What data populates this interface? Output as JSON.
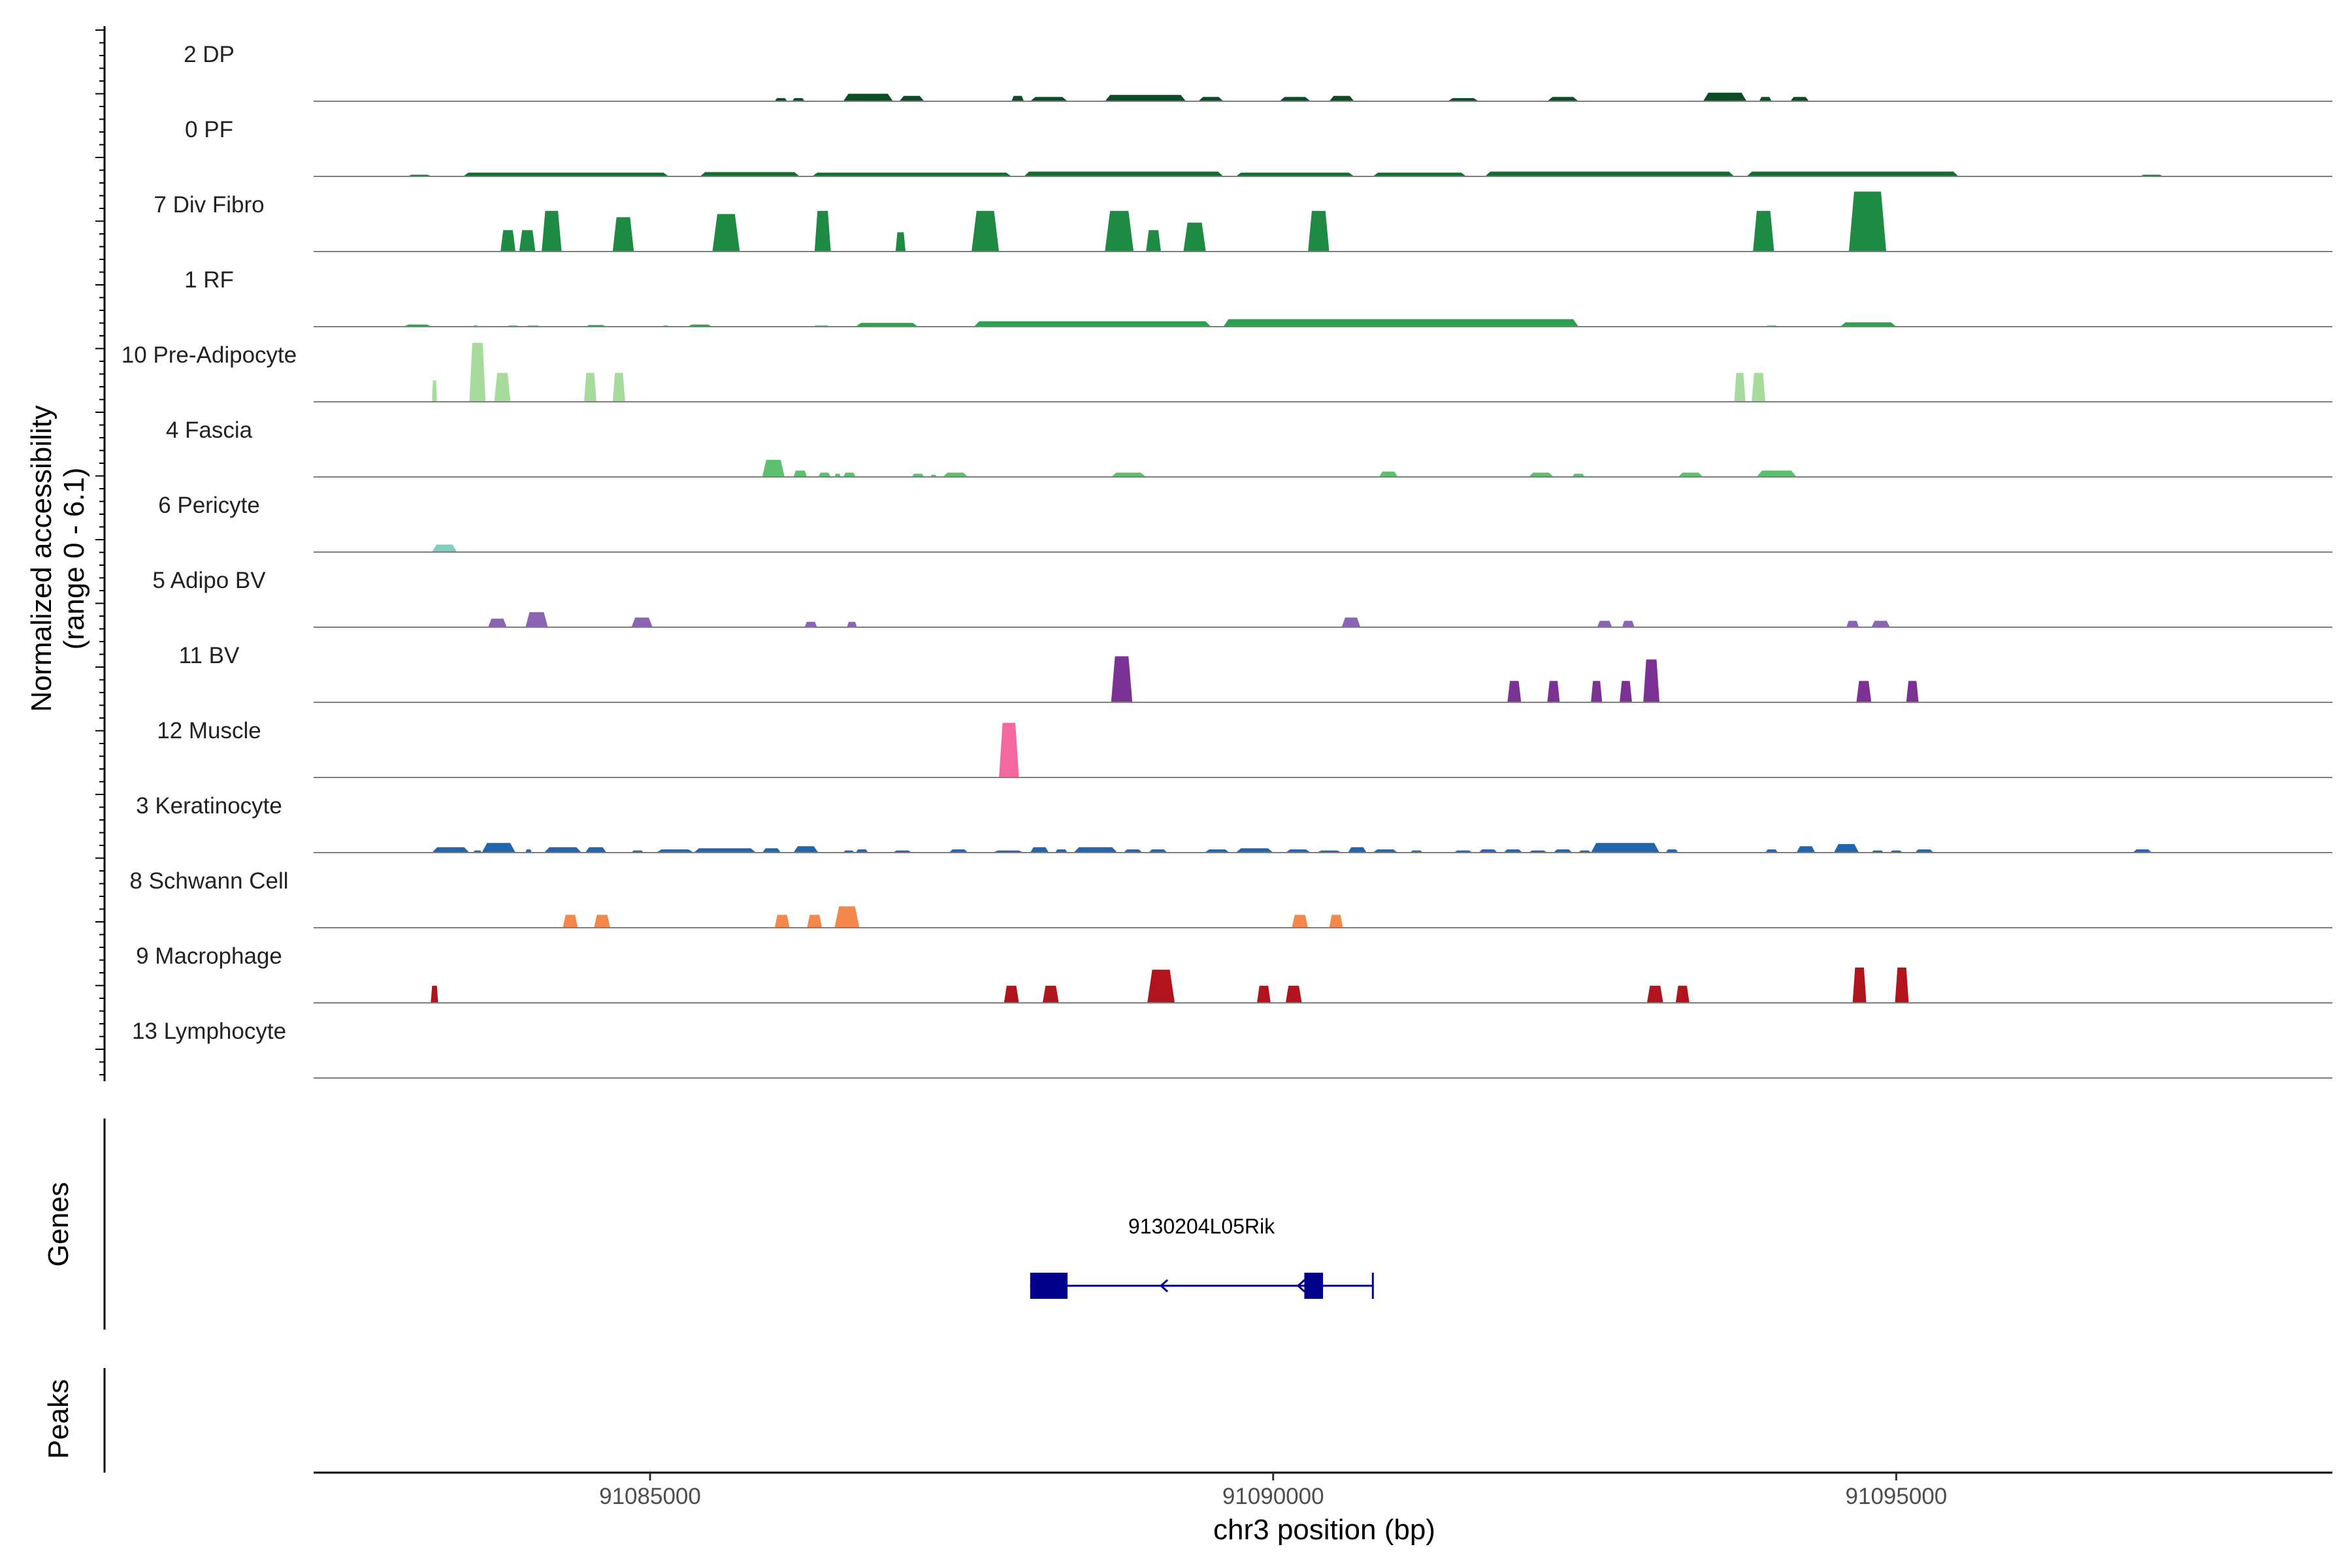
{
  "chart_data": {
    "type": "coverage-track",
    "xlabel": "chr3 position (bp)",
    "ylabel": "Normalized accessibility",
    "ylabel_range": "(range 0 - 6.1)",
    "xlim": [
      91082300,
      91098500
    ],
    "ylim": [
      0,
      6.1
    ],
    "x_ticks": [
      {
        "value": 91085000,
        "label": "91085000"
      },
      {
        "value": 91090000,
        "label": "91090000"
      },
      {
        "value": 91095000,
        "label": "91095000"
      }
    ],
    "tracks": [
      {
        "name": "2 DP",
        "color": "#0d4d25",
        "regions": [
          [
            91086000,
            91086100,
            0.3
          ],
          [
            91086140,
            91086240,
            0.3
          ],
          [
            91086550,
            91086950,
            0.7
          ],
          [
            91087000,
            91087200,
            0.5
          ],
          [
            91087900,
            91088000,
            0.5
          ],
          [
            91088050,
            91088350,
            0.4
          ],
          [
            91088650,
            91089300,
            0.6
          ],
          [
            91089400,
            91089600,
            0.4
          ],
          [
            91090050,
            91090300,
            0.4
          ],
          [
            91090450,
            91090650,
            0.5
          ],
          [
            91091400,
            91091650,
            0.3
          ],
          [
            91092200,
            91092450,
            0.4
          ],
          [
            91093450,
            91093800,
            0.8
          ],
          [
            91093900,
            91094000,
            0.4
          ],
          [
            91094150,
            91094300,
            0.4
          ]
        ]
      },
      {
        "name": "0 PF",
        "color": "#156b31",
        "regions": [
          [
            91083050,
            91083250,
            0.15
          ],
          [
            91083500,
            91085150,
            0.35
          ],
          [
            91085400,
            91086200,
            0.4
          ],
          [
            91086300,
            91087900,
            0.35
          ],
          [
            91088000,
            91089600,
            0.45
          ],
          [
            91089700,
            91090650,
            0.35
          ],
          [
            91090800,
            91091550,
            0.35
          ],
          [
            91091700,
            91093700,
            0.45
          ],
          [
            91093800,
            91095500,
            0.45
          ],
          [
            91096950,
            91097150,
            0.15
          ]
        ]
      },
      {
        "name": "7 Div Fibro",
        "color": "#1f8a44",
        "regions": [
          [
            91083800,
            91083920,
            2.0
          ],
          [
            91083950,
            91084080,
            2.0
          ],
          [
            91084130,
            91084290,
            3.8
          ],
          [
            91084700,
            91084870,
            3.2
          ],
          [
            91085500,
            91085720,
            3.5
          ],
          [
            91086320,
            91086450,
            3.8
          ],
          [
            91086970,
            91087050,
            1.8
          ],
          [
            91087580,
            91087800,
            3.8
          ],
          [
            91088650,
            91088880,
            3.8
          ],
          [
            91088980,
            91089100,
            2.0
          ],
          [
            91089280,
            91089460,
            2.7
          ],
          [
            91090280,
            91090450,
            3.8
          ],
          [
            91093850,
            91094020,
            3.8
          ],
          [
            91094620,
            91094920,
            5.6
          ]
        ]
      },
      {
        "name": "1 RF",
        "color": "#2e9e4f",
        "regions": [
          [
            91083020,
            91083250,
            0.2
          ],
          [
            91083580,
            91083620,
            0.1
          ],
          [
            91083850,
            91083950,
            0.1
          ],
          [
            91084000,
            91084120,
            0.1
          ],
          [
            91084480,
            91084650,
            0.15
          ],
          [
            91085100,
            91085150,
            0.1
          ],
          [
            91085300,
            91085500,
            0.2
          ],
          [
            91086300,
            91086450,
            0.1
          ],
          [
            91086650,
            91087150,
            0.35
          ],
          [
            91087600,
            91089500,
            0.5
          ],
          [
            91089600,
            91092450,
            0.7
          ],
          [
            91093950,
            91094050,
            0.1
          ],
          [
            91094550,
            91095000,
            0.4
          ]
        ]
      },
      {
        "name": "10 Pre-Adipocyte",
        "color": "#a6db9d",
        "regions": [
          [
            91083250,
            91083290,
            2.0
          ],
          [
            91083550,
            91083680,
            5.5
          ],
          [
            91083750,
            91083880,
            2.7
          ],
          [
            91084470,
            91084570,
            2.7
          ],
          [
            91084700,
            91084800,
            2.7
          ],
          [
            91093700,
            91093790,
            2.7
          ],
          [
            91093840,
            91093950,
            2.7
          ]
        ]
      },
      {
        "name": "4 Fascia",
        "color": "#5cc06f",
        "regions": [
          [
            91085900,
            91086080,
            1.6
          ],
          [
            91086150,
            91086260,
            0.6
          ],
          [
            91086350,
            91086450,
            0.4
          ],
          [
            91086480,
            91086530,
            0.3
          ],
          [
            91086550,
            91086650,
            0.4
          ],
          [
            91087100,
            91087200,
            0.3
          ],
          [
            91087250,
            91087300,
            0.2
          ],
          [
            91087350,
            91087550,
            0.4
          ],
          [
            91088700,
            91088980,
            0.4
          ],
          [
            91090850,
            91091000,
            0.5
          ],
          [
            91092050,
            91092250,
            0.4
          ],
          [
            91092400,
            91092500,
            0.3
          ],
          [
            91093250,
            91093450,
            0.4
          ],
          [
            91093880,
            91094200,
            0.6
          ]
        ]
      },
      {
        "name": "6 Pericyte",
        "color": "#7fcdbb",
        "regions": [
          [
            91083250,
            91083450,
            0.7
          ]
        ]
      },
      {
        "name": "5 Adipo BV",
        "color": "#8b64b3",
        "regions": [
          [
            91083700,
            91083850,
            0.8
          ],
          [
            91084000,
            91084180,
            1.4
          ],
          [
            91084850,
            91085020,
            0.9
          ],
          [
            91086240,
            91086340,
            0.5
          ],
          [
            91086580,
            91086660,
            0.5
          ],
          [
            91090550,
            91090700,
            0.9
          ],
          [
            91092600,
            91092720,
            0.6
          ],
          [
            91092800,
            91092900,
            0.6
          ],
          [
            91094600,
            91094700,
            0.6
          ],
          [
            91094800,
            91094950,
            0.6
          ]
        ]
      },
      {
        "name": "11 BV",
        "color": "#7b3294",
        "regions": [
          [
            91088700,
            91088870,
            4.3
          ],
          [
            91091880,
            91091990,
            2.0
          ],
          [
            91092200,
            91092300,
            2.0
          ],
          [
            91092550,
            91092640,
            2.0
          ],
          [
            91092780,
            91092880,
            2.0
          ],
          [
            91092970,
            91093100,
            4.0
          ],
          [
            91094680,
            91094800,
            2.0
          ],
          [
            91095080,
            91095180,
            2.0
          ]
        ]
      },
      {
        "name": "12 Muscle",
        "color": "#f468a0",
        "regions": [
          [
            91087800,
            91087960,
            5.1
          ]
        ]
      },
      {
        "name": "3 Keratinocyte",
        "color": "#2166ac",
        "regions": [
          [
            91083250,
            91083550,
            0.5
          ],
          [
            91083580,
            91083650,
            0.2
          ],
          [
            91083650,
            91083920,
            0.9
          ],
          [
            91084000,
            91084050,
            0.3
          ],
          [
            91084150,
            91084450,
            0.5
          ],
          [
            91084480,
            91084650,
            0.5
          ],
          [
            91084850,
            91084950,
            0.2
          ],
          [
            91085050,
            91085350,
            0.3
          ],
          [
            91085350,
            91085850,
            0.4
          ],
          [
            91085900,
            91086050,
            0.4
          ],
          [
            91086150,
            91086350,
            0.6
          ],
          [
            91086550,
            91086640,
            0.2
          ],
          [
            91086650,
            91086750,
            0.3
          ],
          [
            91086950,
            91087100,
            0.2
          ],
          [
            91087400,
            91087550,
            0.3
          ],
          [
            91087750,
            91088000,
            0.2
          ],
          [
            91088050,
            91088200,
            0.5
          ],
          [
            91088250,
            91088350,
            0.3
          ],
          [
            91088400,
            91088750,
            0.5
          ],
          [
            91088800,
            91088950,
            0.3
          ],
          [
            91089000,
            91089150,
            0.3
          ],
          [
            91089450,
            91089650,
            0.3
          ],
          [
            91089700,
            91090000,
            0.4
          ],
          [
            91090100,
            91090300,
            0.3
          ],
          [
            91090350,
            91090550,
            0.2
          ],
          [
            91090600,
            91090750,
            0.5
          ],
          [
            91090800,
            91091000,
            0.3
          ],
          [
            91091100,
            91091200,
            0.2
          ],
          [
            91091450,
            91091600,
            0.2
          ],
          [
            91091650,
            91091800,
            0.3
          ],
          [
            91091850,
            91092000,
            0.3
          ],
          [
            91092050,
            91092200,
            0.2
          ],
          [
            91092250,
            91092400,
            0.3
          ],
          [
            91092450,
            91092550,
            0.2
          ],
          [
            91092550,
            91093100,
            0.9
          ],
          [
            91093150,
            91093250,
            0.3
          ],
          [
            91093950,
            91094050,
            0.3
          ],
          [
            91094200,
            91094350,
            0.6
          ],
          [
            91094500,
            91094700,
            0.8
          ],
          [
            91094800,
            91094900,
            0.2
          ],
          [
            91094950,
            91095050,
            0.2
          ],
          [
            91095150,
            91095300,
            0.3
          ],
          [
            91096900,
            91097050,
            0.3
          ]
        ]
      },
      {
        "name": "8 Schwann Cell",
        "color": "#f4874b",
        "regions": [
          [
            91084300,
            91084420,
            1.2
          ],
          [
            91084550,
            91084680,
            1.2
          ],
          [
            91086000,
            91086120,
            1.2
          ],
          [
            91086260,
            91086380,
            1.2
          ],
          [
            91086480,
            91086680,
            2.0
          ],
          [
            91090150,
            91090280,
            1.2
          ],
          [
            91090450,
            91090560,
            1.2
          ]
        ]
      },
      {
        "name": "9 Macrophage",
        "color": "#b2141d",
        "regions": [
          [
            91083240,
            91083300,
            1.6
          ],
          [
            91087840,
            91087960,
            1.6
          ],
          [
            91088150,
            91088280,
            1.6
          ],
          [
            91088990,
            91089210,
            3.1
          ],
          [
            91089870,
            91089980,
            1.6
          ],
          [
            91090100,
            91090230,
            1.6
          ],
          [
            91093000,
            91093130,
            1.6
          ],
          [
            91093230,
            91093340,
            1.6
          ],
          [
            91094650,
            91094760,
            3.3
          ],
          [
            91094990,
            91095100,
            3.3
          ]
        ]
      },
      {
        "name": "13 Lymphocyte",
        "color": "#9ecae1",
        "regions": []
      }
    ],
    "genes": [
      {
        "name": "9130204L05Rik",
        "color": "#00008b",
        "strand": "-",
        "start": 91088050,
        "end": 91090800,
        "exons": [
          [
            91088050,
            91088350
          ],
          [
            91090250,
            91090400
          ]
        ]
      }
    ],
    "panels": {
      "genes": "Genes",
      "peaks": "Peaks"
    }
  }
}
